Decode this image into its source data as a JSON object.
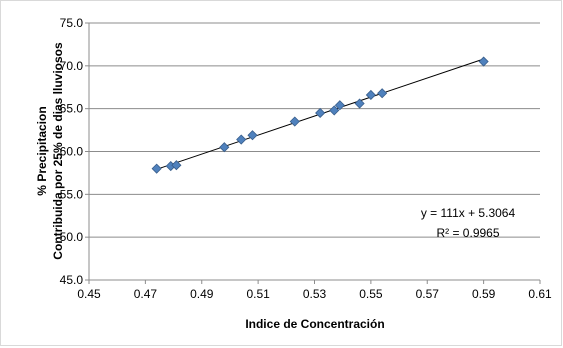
{
  "chart_data": {
    "type": "scatter",
    "title": "",
    "xlabel": "Indice de Concentración",
    "ylabel_lines": [
      "% Precipitacion",
      "Contribuida por 25% de dias lluviosos"
    ],
    "xlim": [
      0.45,
      0.61
    ],
    "ylim": [
      45.0,
      75.0
    ],
    "x_ticks": [
      0.45,
      0.47,
      0.49,
      0.51,
      0.53,
      0.55,
      0.57,
      0.59,
      0.61
    ],
    "x_tick_labels": [
      "0.45",
      "0.47",
      "0.49",
      "0.51",
      "0.53",
      "0.55",
      "0.57",
      "0.59",
      "0.61"
    ],
    "y_ticks": [
      45.0,
      50.0,
      55.0,
      60.0,
      65.0,
      70.0,
      75.0
    ],
    "y_tick_labels": [
      "45.0",
      "50.0",
      "55.0",
      "60.0",
      "65.0",
      "70.0",
      "75.0"
    ],
    "grid": "horizontal",
    "legend": "none",
    "marker_color": "#4f81bd",
    "marker_edge_color": "#385d8a",
    "trendline_color": "#000000",
    "points": [
      {
        "x": 0.474,
        "y": 58.0
      },
      {
        "x": 0.479,
        "y": 58.3
      },
      {
        "x": 0.481,
        "y": 58.4
      },
      {
        "x": 0.498,
        "y": 60.5
      },
      {
        "x": 0.504,
        "y": 61.4
      },
      {
        "x": 0.508,
        "y": 61.9
      },
      {
        "x": 0.523,
        "y": 63.5
      },
      {
        "x": 0.532,
        "y": 64.5
      },
      {
        "x": 0.537,
        "y": 64.8
      },
      {
        "x": 0.539,
        "y": 65.4
      },
      {
        "x": 0.546,
        "y": 65.6
      },
      {
        "x": 0.55,
        "y": 66.6
      },
      {
        "x": 0.554,
        "y": 66.8
      },
      {
        "x": 0.59,
        "y": 70.5
      }
    ],
    "trendline": {
      "slope": 111,
      "intercept": 5.3064,
      "x_range": [
        0.474,
        0.59
      ]
    },
    "equation_text": "y = 111x + 5.3064",
    "r2_text": "R² = 0.9965"
  }
}
